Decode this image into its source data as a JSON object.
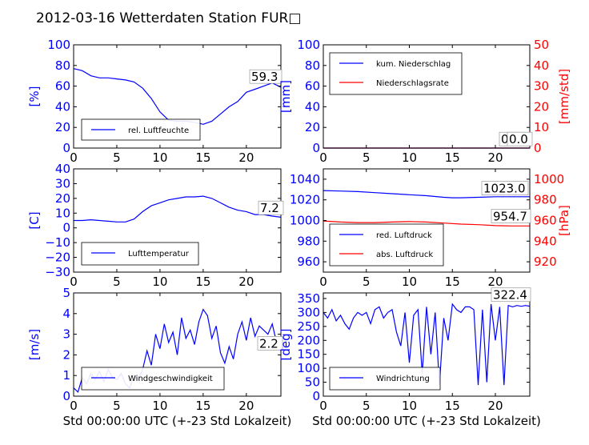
{
  "title": "2012-03-16 Wetterdaten Station FUR□",
  "colors": {
    "blue": "#0000ff",
    "red": "#ff0000",
    "text": "#000000"
  },
  "chart_data": [
    {
      "id": "humidity",
      "type": "line",
      "x_ticks": [
        "0",
        "5",
        "10",
        "15",
        "20"
      ],
      "y_ticks": [
        "0",
        "20",
        "40",
        "60",
        "80",
        "100"
      ],
      "ylabel": "[%]",
      "xlim": [
        0,
        24
      ],
      "ylim": [
        0,
        100
      ],
      "legend": [
        "rel. Luftfeuchte"
      ],
      "annotation": "59.3",
      "series": [
        {
          "name": "rel. Luftfeuchte",
          "color": "#0000ff",
          "x": [
            0,
            1,
            2,
            3,
            4,
            5,
            6,
            7,
            8,
            9,
            10,
            11,
            12,
            13,
            14,
            15,
            16,
            17,
            18,
            19,
            20,
            21,
            22,
            23,
            24
          ],
          "y": [
            77,
            75,
            70,
            68,
            68,
            67,
            66,
            64,
            58,
            48,
            35,
            27,
            26,
            26,
            25,
            23,
            26,
            33,
            40,
            45,
            54,
            57,
            60,
            63,
            59
          ]
        }
      ]
    },
    {
      "id": "precipitation",
      "type": "line",
      "x_ticks": [
        "0",
        "5",
        "10",
        "15",
        "20"
      ],
      "y_ticks": [
        "0",
        "20",
        "40",
        "60",
        "80",
        "100"
      ],
      "y2_ticks": [
        "0",
        "10",
        "20",
        "30",
        "40",
        "50"
      ],
      "ylabel": "[mm]",
      "y2label": "[mm/std]",
      "xlim": [
        0,
        24
      ],
      "ylim": [
        0,
        100
      ],
      "y2lim": [
        0,
        50
      ],
      "legend": [
        "kum. Niederschlag",
        "Niederschlagsrate"
      ],
      "annotation": "0.0",
      "annotation2": "0.0",
      "series": [
        {
          "name": "kum. Niederschlag",
          "color": "#0000ff",
          "x": [
            0,
            24
          ],
          "y": [
            0,
            0
          ]
        },
        {
          "name": "Niederschlagsrate",
          "color": "#ff0000",
          "axis": "right",
          "x": [
            0,
            24
          ],
          "y": [
            0,
            0
          ]
        }
      ]
    },
    {
      "id": "temperature",
      "type": "line",
      "x_ticks": [
        "0",
        "5",
        "10",
        "15",
        "20"
      ],
      "y_ticks": [
        "−30",
        "−20",
        "−10",
        "0",
        "10",
        "20",
        "30",
        "40"
      ],
      "ylabel": "[C]",
      "xlim": [
        0,
        24
      ],
      "ylim": [
        -30,
        40
      ],
      "legend": [
        "Lufttemperatur"
      ],
      "annotation": "7.2",
      "series": [
        {
          "name": "Lufttemperatur",
          "color": "#0000ff",
          "x": [
            0,
            1,
            2,
            3,
            4,
            5,
            6,
            7,
            8,
            9,
            10,
            11,
            12,
            13,
            14,
            15,
            16,
            17,
            18,
            19,
            20,
            21,
            22,
            23,
            24
          ],
          "y": [
            5,
            5,
            5.5,
            5,
            4.5,
            4,
            4,
            6,
            11,
            15,
            17,
            19,
            20,
            21,
            21,
            21.5,
            20,
            17,
            14,
            12,
            11,
            9,
            9,
            8,
            7.2
          ]
        }
      ]
    },
    {
      "id": "pressure",
      "type": "line",
      "x_ticks": [
        "0",
        "5",
        "10",
        "15",
        "20"
      ],
      "y_ticks": [
        "960",
        "980",
        "1000",
        "1020",
        "1040"
      ],
      "y2_ticks": [
        "920",
        "940",
        "960",
        "980",
        "1000"
      ],
      "y2label": "[hPa]",
      "xlim": [
        0,
        24
      ],
      "ylim": [
        950,
        1050
      ],
      "y2lim": [
        910,
        1010
      ],
      "legend": [
        "red. Luftdruck",
        "abs. Luftdruck"
      ],
      "annotation": "1023.0",
      "annotation2": "954.7",
      "series": [
        {
          "name": "red. Luftdruck",
          "color": "#0000ff",
          "x": [
            0,
            2,
            4,
            6,
            8,
            10,
            12,
            14,
            15,
            16,
            18,
            20,
            22,
            24
          ],
          "y": [
            1029,
            1028.5,
            1028,
            1027,
            1026,
            1025,
            1024,
            1022.5,
            1022,
            1022,
            1022.5,
            1023,
            1023,
            1023
          ]
        },
        {
          "name": "abs. Luftdruck",
          "color": "#ff0000",
          "axis": "right",
          "x": [
            0,
            2,
            4,
            6,
            8,
            10,
            12,
            14,
            16,
            18,
            20,
            22,
            24
          ],
          "y": [
            959.5,
            958.5,
            958,
            958,
            958.5,
            959,
            958.5,
            957.5,
            956.5,
            956,
            955,
            954.7,
            954.7
          ]
        }
      ]
    },
    {
      "id": "windspeed",
      "type": "line",
      "x_ticks": [
        "0",
        "5",
        "10",
        "15",
        "20"
      ],
      "y_ticks": [
        "0",
        "1",
        "2",
        "3",
        "4",
        "5"
      ],
      "ylabel": "[m/s]",
      "xlabel": "Std 00:00:00 UTC (+-23 Std Lokalzeit)",
      "xlim": [
        0,
        24
      ],
      "ylim": [
        0,
        5
      ],
      "legend": [
        "Windgeschwindigkeit"
      ],
      "annotation": "2.2",
      "series": [
        {
          "name": "Windgeschwindigkeit",
          "color": "#0000ff",
          "x": [
            0,
            0.5,
            1,
            1.5,
            2,
            2.5,
            3,
            3.5,
            4,
            4.5,
            5,
            5.5,
            6,
            6.5,
            7,
            7.5,
            8,
            8.5,
            9,
            9.5,
            10,
            10.5,
            11,
            11.5,
            12,
            12.5,
            13,
            13.5,
            14,
            14.5,
            15,
            15.5,
            16,
            16.5,
            17,
            17.5,
            18,
            18.5,
            19,
            19.5,
            20,
            20.5,
            21,
            21.5,
            22,
            22.5,
            23,
            23.5,
            24
          ],
          "y": [
            0.4,
            0.2,
            0.9,
            0.6,
            1.1,
            0.8,
            1.2,
            0.7,
            1.3,
            0.9,
            0.8,
            1.1,
            0.6,
            0.4,
            1.0,
            0.8,
            1.3,
            2.2,
            1.5,
            3.0,
            2.3,
            3.5,
            2.6,
            3.1,
            2.0,
            3.8,
            2.8,
            3.2,
            2.5,
            3.6,
            4.2,
            3.9,
            2.8,
            3.4,
            2.1,
            1.6,
            2.4,
            1.8,
            3.0,
            3.6,
            2.7,
            3.8,
            2.9,
            3.4,
            3.2,
            3.0,
            3.5,
            2.6,
            2.2
          ]
        }
      ]
    },
    {
      "id": "winddirection",
      "type": "line",
      "x_ticks": [
        "0",
        "5",
        "10",
        "15",
        "20"
      ],
      "y_ticks": [
        "0",
        "50",
        "100",
        "150",
        "200",
        "250",
        "300",
        "350"
      ],
      "ylabel": "[deg]",
      "xlabel": "Std 00:00:00 UTC (+-23 Std Lokalzeit)",
      "xlim": [
        0,
        24
      ],
      "ylim": [
        0,
        370
      ],
      "legend": [
        "Windrichtung"
      ],
      "annotation": "322.4",
      "series": [
        {
          "name": "Windrichtung",
          "color": "#0000ff",
          "x": [
            0,
            0.5,
            1,
            1.5,
            2,
            2.5,
            3,
            3.5,
            4,
            4.5,
            5,
            5.5,
            6,
            6.5,
            7,
            7.5,
            8,
            8.5,
            9,
            9.5,
            10,
            10.5,
            11,
            11.5,
            12,
            12.5,
            13,
            13.5,
            14,
            14.5,
            15,
            15.5,
            16,
            16.5,
            17,
            17.5,
            18,
            18.5,
            19,
            19.5,
            20,
            20.5,
            21,
            21.5,
            22,
            22.5,
            23,
            23.5,
            24
          ],
          "y": [
            300,
            280,
            310,
            270,
            290,
            260,
            240,
            280,
            300,
            290,
            300,
            260,
            310,
            320,
            280,
            300,
            310,
            230,
            180,
            300,
            120,
            290,
            310,
            80,
            320,
            150,
            300,
            40,
            280,
            200,
            330,
            310,
            300,
            320,
            320,
            310,
            40,
            310,
            50,
            330,
            200,
            320,
            40,
            325,
            320,
            325,
            322,
            325,
            322.4
          ]
        }
      ]
    }
  ]
}
